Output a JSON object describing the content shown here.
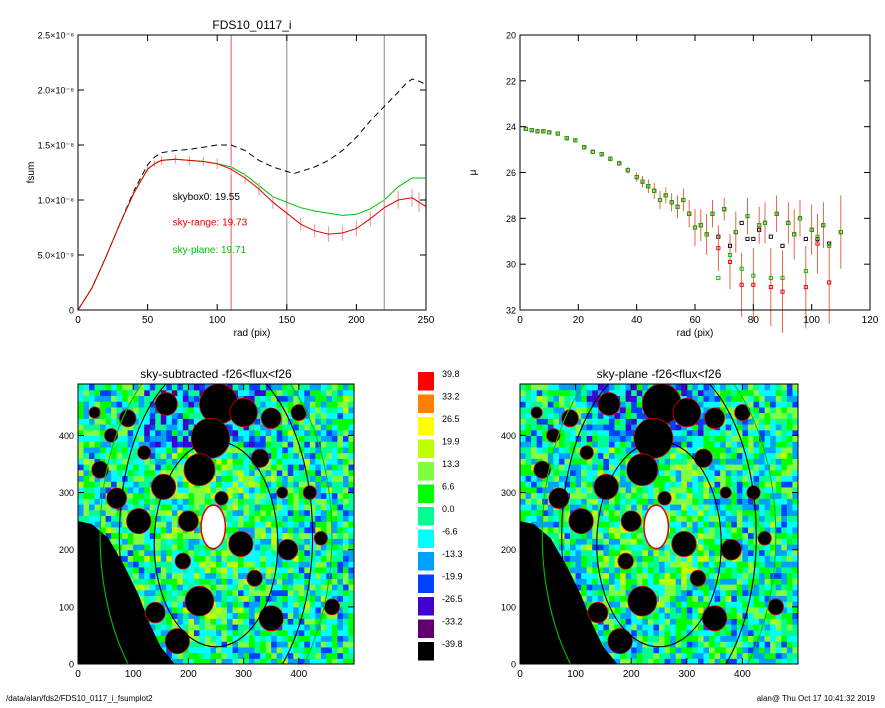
{
  "footer": {
    "path": "/data/alan/fds2/FDS10_0117_i_fsumplot2",
    "stamp": "alan@  Thu Oct 17 10:41:32 2019"
  },
  "chart_data": [
    {
      "type": "line",
      "title": "FDS10_0117_i",
      "xlabel": "rad (pix)",
      "ylabel": "fsum",
      "xlim": [
        0,
        250
      ],
      "ylim": [
        0,
        2.5e-08
      ],
      "xticks": [
        0,
        50,
        100,
        150,
        200,
        250
      ],
      "yticks": [
        {
          "value": 0,
          "label": "0"
        },
        {
          "value": 5e-09,
          "label": "5.0×10⁻⁹"
        },
        {
          "value": 1e-08,
          "label": "1.0×10⁻⁸"
        },
        {
          "value": 1.5e-08,
          "label": "1.5×10⁻⁸"
        },
        {
          "value": 2e-08,
          "label": "2.0×10⁻⁸"
        },
        {
          "value": 2.5e-08,
          "label": "2.5×10⁻⁸"
        }
      ],
      "vlines": [
        {
          "x": 110,
          "color": "#e06060"
        },
        {
          "x": 150,
          "color": "#888888"
        },
        {
          "x": 220,
          "color": "#888888"
        }
      ],
      "annotations": [
        {
          "text": "skybox0: 19.55",
          "color": "#000000",
          "x": 68,
          "y": 1e-08
        },
        {
          "text": "sky-range: 19.73",
          "color": "#e00000",
          "x": 68,
          "y": 7.7e-09
        },
        {
          "text": "sky-plane: 19.71",
          "color": "#00c000",
          "x": 68,
          "y": 5.2e-09
        }
      ],
      "series": [
        {
          "style": "dashed",
          "color": "#000000",
          "x": [
            0,
            10,
            20,
            30,
            40,
            50,
            55,
            60,
            70,
            80,
            90,
            100,
            110,
            120,
            130,
            140,
            145,
            150,
            155,
            160,
            170,
            180,
            190,
            200,
            210,
            220,
            230,
            235,
            240,
            245,
            250
          ],
          "y": [
            0,
            2e-09,
            4.8e-09,
            7.8e-09,
            1.08e-08,
            1.32e-08,
            1.39e-08,
            1.43e-08,
            1.45e-08,
            1.46e-08,
            1.48e-08,
            1.5e-08,
            1.5e-08,
            1.45e-08,
            1.36e-08,
            1.3e-08,
            1.28e-08,
            1.26e-08,
            1.24e-08,
            1.26e-08,
            1.3e-08,
            1.36e-08,
            1.45e-08,
            1.57e-08,
            1.72e-08,
            1.85e-08,
            1.98e-08,
            2.05e-08,
            2.1e-08,
            2.08e-08,
            2.05e-08
          ]
        },
        {
          "style": "solid",
          "color": "#00c000",
          "x": [
            0,
            10,
            20,
            30,
            40,
            50,
            55,
            60,
            70,
            80,
            90,
            100,
            110,
            120,
            130,
            140,
            150,
            160,
            170,
            180,
            190,
            200,
            210,
            220,
            230,
            240,
            250
          ],
          "y": [
            0,
            2e-09,
            4.8e-09,
            7.8e-09,
            1.06e-08,
            1.28e-08,
            1.33e-08,
            1.36e-08,
            1.37e-08,
            1.36e-08,
            1.35e-08,
            1.33e-08,
            1.3e-08,
            1.23e-08,
            1.13e-08,
            1.03e-08,
            9.8e-09,
            9.3e-09,
            9e-09,
            8.8e-09,
            8.6e-09,
            8.7e-09,
            9.2e-09,
            1e-08,
            1.12e-08,
            1.2e-08,
            1.2e-08
          ]
        },
        {
          "style": "solid",
          "color": "#e00000",
          "errors": true,
          "x": [
            0,
            10,
            20,
            30,
            40,
            50,
            55,
            60,
            70,
            80,
            90,
            100,
            110,
            120,
            130,
            140,
            150,
            160,
            170,
            180,
            190,
            200,
            210,
            220,
            230,
            240,
            245,
            250
          ],
          "y": [
            0,
            2e-09,
            4.8e-09,
            7.8e-09,
            1.06e-08,
            1.28e-08,
            1.33e-08,
            1.36e-08,
            1.37e-08,
            1.36e-08,
            1.35e-08,
            1.33e-08,
            1.28e-08,
            1.2e-08,
            1.1e-08,
            9.8e-09,
            8.8e-09,
            7.8e-09,
            7.2e-09,
            6.9e-09,
            7e-09,
            7.4e-09,
            8.3e-09,
            9.3e-09,
            1e-08,
            1.02e-08,
            9.8e-09,
            9.4e-09
          ],
          "err": [
            0,
            1e-10,
            1e-10,
            2e-10,
            2e-10,
            3e-10,
            3e-10,
            4e-10,
            4e-10,
            4e-10,
            4e-10,
            5e-10,
            5e-10,
            5e-10,
            6e-10,
            6e-10,
            6e-10,
            6e-10,
            6e-10,
            7e-10,
            7e-10,
            7e-10,
            7e-10,
            8e-10,
            8e-10,
            8e-10,
            9e-10,
            9e-10
          ]
        }
      ]
    },
    {
      "type": "scatter",
      "title": "",
      "xlabel": "rad (pix)",
      "ylabel": "μ",
      "xlim": [
        0,
        120
      ],
      "ylim": [
        20,
        32
      ],
      "y_inverted": true,
      "xticks": [
        0,
        20,
        40,
        60,
        80,
        100,
        120
      ],
      "yticks": [
        20,
        22,
        24,
        26,
        28,
        30,
        32
      ],
      "series": [
        {
          "name": "skybox0",
          "color": "#000000",
          "x": [
            2,
            4,
            6,
            8,
            10,
            13,
            16,
            19,
            22,
            25,
            28,
            31,
            34,
            37,
            40,
            42,
            44,
            46,
            48,
            50,
            52,
            54,
            56,
            58,
            60,
            62,
            64,
            66,
            68,
            70,
            72,
            74,
            76,
            78,
            80,
            82,
            84,
            86,
            88,
            90,
            92,
            94,
            96,
            98,
            100,
            102,
            104,
            106,
            110
          ],
          "y": [
            24.1,
            24.15,
            24.2,
            24.2,
            24.25,
            24.3,
            24.5,
            24.6,
            24.9,
            25.1,
            25.2,
            25.4,
            25.6,
            25.9,
            26.2,
            26.4,
            26.6,
            26.8,
            27.2,
            27.0,
            27.3,
            27.5,
            27.2,
            27.8,
            28.4,
            28.3,
            28.7,
            27.8,
            28.8,
            27.6,
            29.2,
            28.6,
            28.2,
            28.9,
            28.9,
            28.5,
            28.2,
            28.8,
            27.8,
            29.2,
            28.2,
            28.7,
            28.0,
            28.9,
            28.5,
            28.9,
            28.3,
            29.1,
            28.6
          ]
        },
        {
          "name": "sky-range",
          "color": "#e00000",
          "errors": true,
          "x": [
            2,
            4,
            6,
            8,
            10,
            13,
            16,
            19,
            22,
            25,
            28,
            31,
            34,
            37,
            40,
            42,
            44,
            46,
            48,
            50,
            52,
            54,
            56,
            58,
            60,
            62,
            64,
            66,
            68,
            70,
            72,
            74,
            76,
            78,
            80,
            82,
            84,
            86,
            88,
            90,
            92,
            94,
            96,
            98,
            100,
            102,
            104,
            106,
            110
          ],
          "y": [
            24.1,
            24.15,
            24.2,
            24.2,
            24.25,
            24.3,
            24.5,
            24.6,
            24.9,
            25.1,
            25.2,
            25.4,
            25.6,
            25.9,
            26.2,
            26.4,
            26.6,
            26.8,
            27.2,
            27.0,
            27.3,
            27.5,
            27.2,
            27.8,
            28.4,
            28.3,
            28.7,
            27.8,
            29.3,
            27.6,
            29.9,
            28.6,
            30.9,
            27.9,
            30.9,
            28.3,
            28.2,
            31.0,
            27.8,
            31.2,
            28.2,
            28.7,
            28.0,
            31.0,
            28.5,
            29.1,
            28.3,
            30.8,
            28.6
          ],
          "err": [
            0.05,
            0.05,
            0.05,
            0.05,
            0.05,
            0.05,
            0.06,
            0.06,
            0.08,
            0.08,
            0.1,
            0.1,
            0.12,
            0.15,
            0.2,
            0.25,
            0.3,
            0.35,
            0.4,
            0.35,
            0.4,
            0.5,
            0.5,
            0.6,
            0.8,
            0.7,
            0.9,
            0.6,
            1.0,
            0.5,
            1.2,
            0.9,
            1.4,
            0.8,
            1.6,
            0.8,
            0.9,
            1.7,
            0.8,
            1.8,
            0.9,
            1.1,
            0.8,
            1.8,
            1.1,
            1.3,
            1.0,
            1.8,
            1.6
          ]
        },
        {
          "name": "sky-plane",
          "color": "#00c000",
          "x": [
            2,
            4,
            6,
            8,
            10,
            13,
            16,
            19,
            22,
            25,
            28,
            31,
            34,
            37,
            40,
            42,
            44,
            46,
            48,
            50,
            52,
            54,
            56,
            58,
            60,
            62,
            64,
            66,
            68,
            70,
            72,
            74,
            76,
            78,
            80,
            82,
            84,
            86,
            88,
            90,
            92,
            94,
            96,
            98,
            100,
            102,
            104,
            106,
            110
          ],
          "y": [
            24.1,
            24.15,
            24.2,
            24.2,
            24.25,
            24.3,
            24.5,
            24.6,
            24.9,
            25.1,
            25.2,
            25.4,
            25.6,
            25.9,
            26.2,
            26.4,
            26.6,
            26.8,
            27.2,
            27.0,
            27.3,
            27.5,
            27.2,
            27.8,
            28.4,
            28.3,
            28.7,
            27.8,
            30.6,
            27.6,
            29.6,
            28.6,
            30.2,
            27.9,
            30.5,
            28.3,
            28.2,
            30.6,
            27.8,
            30.6,
            28.2,
            28.7,
            28.0,
            30.3,
            28.5,
            28.8,
            28.3,
            29.2,
            28.6
          ]
        }
      ]
    },
    {
      "type": "heatmap",
      "title": "sky-subtracted -f26<flux<f26",
      "xlabel": "",
      "ylabel": "",
      "xlim": [
        0,
        500
      ],
      "ylim": [
        0,
        490
      ],
      "xticks": [
        0,
        100,
        200,
        300,
        400
      ],
      "yticks": [
        0,
        100,
        200,
        300,
        400
      ],
      "ellipses": [
        {
          "cx": 250,
          "cy": 210,
          "rx": 112,
          "ry": 180,
          "color": "#000000"
        },
        {
          "cx": 250,
          "cy": 225,
          "rx": 175,
          "ry": 310,
          "color": "#000000"
        },
        {
          "cx": 250,
          "cy": 225,
          "rx": 210,
          "ry": 345,
          "color": "#00c000"
        }
      ],
      "nucleus": {
        "cx": 245,
        "cy": 240
      }
    },
    {
      "type": "heatmap",
      "title": "sky-plane -f26<flux<f26",
      "xlabel": "",
      "ylabel": "",
      "xlim": [
        0,
        500
      ],
      "ylim": [
        0,
        490
      ],
      "xticks": [
        0,
        100,
        200,
        300,
        400
      ],
      "yticks": [
        0,
        100,
        200,
        300,
        400
      ],
      "ellipses": [
        {
          "cx": 250,
          "cy": 210,
          "rx": 112,
          "ry": 180,
          "color": "#000000"
        },
        {
          "cx": 250,
          "cy": 225,
          "rx": 175,
          "ry": 310,
          "color": "#000000"
        },
        {
          "cx": 250,
          "cy": 225,
          "rx": 210,
          "ry": 345,
          "color": "#00c000"
        }
      ],
      "nucleus": {
        "cx": 245,
        "cy": 240
      }
    }
  ],
  "colorbar": {
    "levels": [
      {
        "label": "39.8",
        "color": "#ff0000"
      },
      {
        "label": "33.2",
        "color": "#ff8000"
      },
      {
        "label": "26.5",
        "color": "#ffff00"
      },
      {
        "label": "19.9",
        "color": "#c0ff00"
      },
      {
        "label": "13.3",
        "color": "#80ff40"
      },
      {
        "label": "6.6",
        "color": "#00ff00"
      },
      {
        "label": "0.0",
        "color": "#00ff90"
      },
      {
        "label": "-6.6",
        "color": "#00ffff"
      },
      {
        "label": "-13.3",
        "color": "#00a0ff"
      },
      {
        "label": "-19.9",
        "color": "#0040ff"
      },
      {
        "label": "-26.5",
        "color": "#4000d0"
      },
      {
        "label": "-33.2",
        "color": "#600070"
      },
      {
        "label": "-39.8",
        "color": "#000000"
      }
    ]
  }
}
